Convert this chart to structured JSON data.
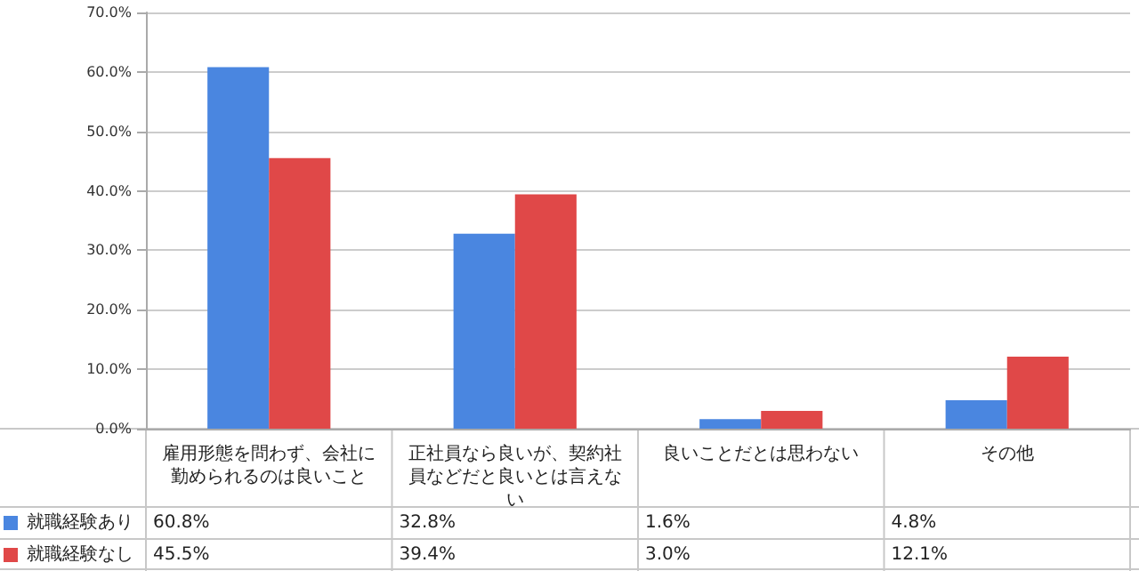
{
  "chart_data": {
    "type": "bar",
    "categories": [
      "雇用形態を問わず、会社に勤められるのは良いこと",
      "正社員なら良いが、契約社員などだと良いとは言えない",
      "良いことだとは思わない",
      "その他"
    ],
    "series": [
      {
        "name": "就職経験あり",
        "color": "#4a86e0",
        "values": [
          60.8,
          32.8,
          1.6,
          4.8
        ],
        "value_labels": [
          "60.8%",
          "32.8%",
          "1.6%",
          "4.8%"
        ]
      },
      {
        "name": "就職経験なし",
        "color": "#e04848",
        "values": [
          45.5,
          39.4,
          3.0,
          12.1
        ],
        "value_labels": [
          "45.5%",
          "39.4%",
          "3.0%",
          "12.1%"
        ]
      }
    ],
    "ylim": [
      0,
      70
    ],
    "yticks": [
      {
        "value": 0,
        "label": "0.0%"
      },
      {
        "value": 10,
        "label": "10.0%"
      },
      {
        "value": 20,
        "label": "20.0%"
      },
      {
        "value": 30,
        "label": "30.0%"
      },
      {
        "value": 40,
        "label": "40.0%"
      },
      {
        "value": 50,
        "label": "50.0%"
      },
      {
        "value": 60,
        "label": "60.0%"
      },
      {
        "value": 70,
        "label": "70.0%"
      }
    ],
    "grid": "y",
    "legend": "bottom left"
  }
}
